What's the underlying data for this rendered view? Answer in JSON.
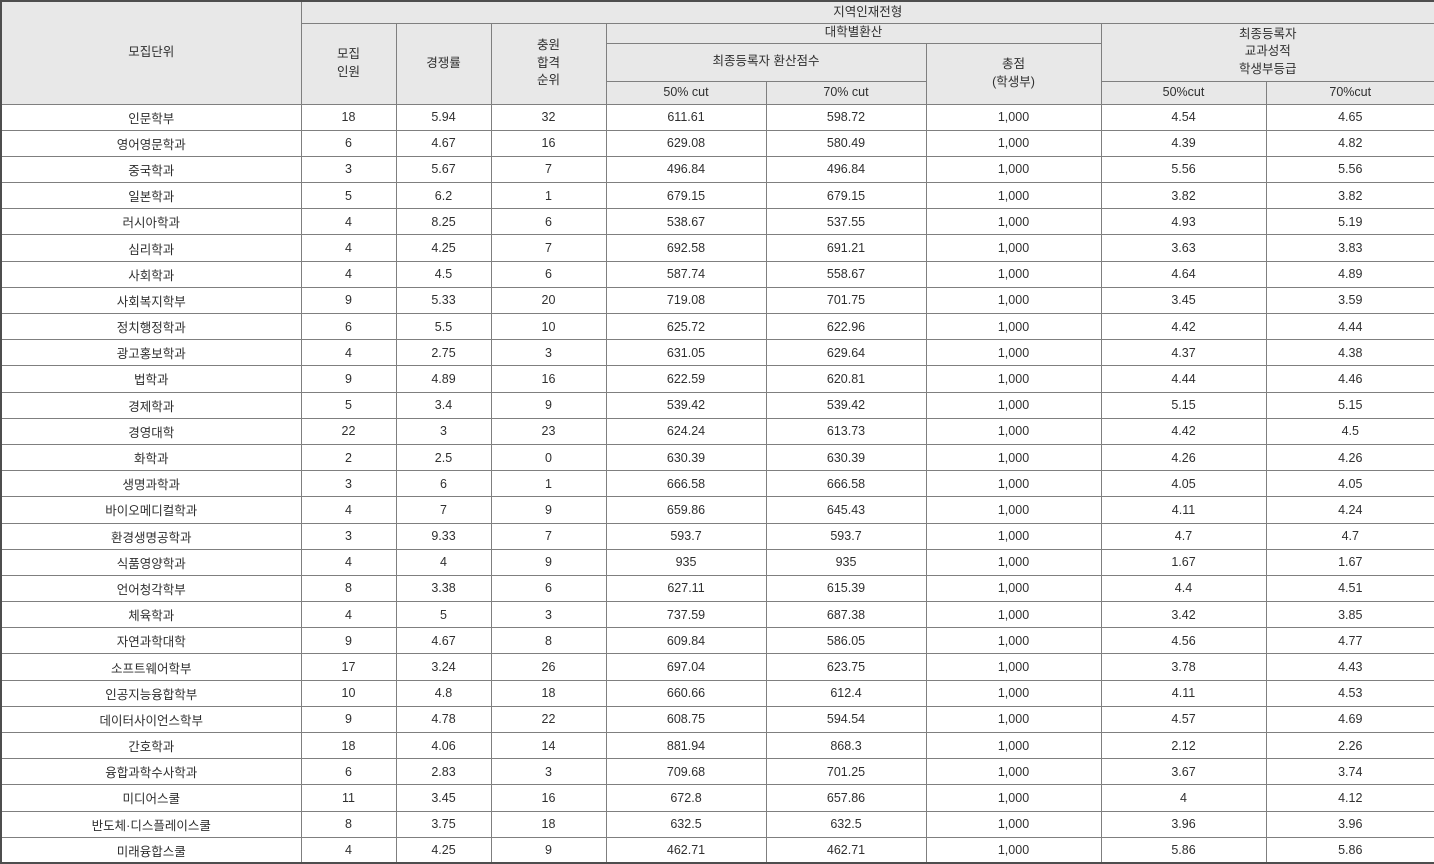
{
  "table": {
    "title_band": "지역인재전형",
    "headers": {
      "unit": "모집단위",
      "recruit_count": "모집\n인원",
      "competition_ratio": "경쟁률",
      "waitlist_rank": "충원\n합격\n순위",
      "univ_conversion_group": "대학별환산",
      "final_registrant_score_group": "최종등록자 환산점수",
      "score_cut50": "50% cut",
      "score_cut70": "70% cut",
      "total_score": "총점\n(학생부)",
      "grade_group": "최종등록자\n교과성적\n학생부등급",
      "grade_cut50": "50%cut",
      "grade_cut70": "70%cut"
    },
    "rows": [
      [
        "인문학부",
        "18",
        "5.94",
        "32",
        "611.61",
        "598.72",
        "1,000",
        "4.54",
        "4.65"
      ],
      [
        "영어영문학과",
        "6",
        "4.67",
        "16",
        "629.08",
        "580.49",
        "1,000",
        "4.39",
        "4.82"
      ],
      [
        "중국학과",
        "3",
        "5.67",
        "7",
        "496.84",
        "496.84",
        "1,000",
        "5.56",
        "5.56"
      ],
      [
        "일본학과",
        "5",
        "6.2",
        "1",
        "679.15",
        "679.15",
        "1,000",
        "3.82",
        "3.82"
      ],
      [
        "러시아학과",
        "4",
        "8.25",
        "6",
        "538.67",
        "537.55",
        "1,000",
        "4.93",
        "5.19"
      ],
      [
        "심리학과",
        "4",
        "4.25",
        "7",
        "692.58",
        "691.21",
        "1,000",
        "3.63",
        "3.83"
      ],
      [
        "사회학과",
        "4",
        "4.5",
        "6",
        "587.74",
        "558.67",
        "1,000",
        "4.64",
        "4.89"
      ],
      [
        "사회복지학부",
        "9",
        "5.33",
        "20",
        "719.08",
        "701.75",
        "1,000",
        "3.45",
        "3.59"
      ],
      [
        "정치행정학과",
        "6",
        "5.5",
        "10",
        "625.72",
        "622.96",
        "1,000",
        "4.42",
        "4.44"
      ],
      [
        "광고홍보학과",
        "4",
        "2.75",
        "3",
        "631.05",
        "629.64",
        "1,000",
        "4.37",
        "4.38"
      ],
      [
        "법학과",
        "9",
        "4.89",
        "16",
        "622.59",
        "620.81",
        "1,000",
        "4.44",
        "4.46"
      ],
      [
        "경제학과",
        "5",
        "3.4",
        "9",
        "539.42",
        "539.42",
        "1,000",
        "5.15",
        "5.15"
      ],
      [
        "경영대학",
        "22",
        "3",
        "23",
        "624.24",
        "613.73",
        "1,000",
        "4.42",
        "4.5"
      ],
      [
        "화학과",
        "2",
        "2.5",
        "0",
        "630.39",
        "630.39",
        "1,000",
        "4.26",
        "4.26"
      ],
      [
        "생명과학과",
        "3",
        "6",
        "1",
        "666.58",
        "666.58",
        "1,000",
        "4.05",
        "4.05"
      ],
      [
        "바이오메디컬학과",
        "4",
        "7",
        "9",
        "659.86",
        "645.43",
        "1,000",
        "4.11",
        "4.24"
      ],
      [
        "환경생명공학과",
        "3",
        "9.33",
        "7",
        "593.7",
        "593.7",
        "1,000",
        "4.7",
        "4.7"
      ],
      [
        "식품영양학과",
        "4",
        "4",
        "9",
        "935",
        "935",
        "1,000",
        "1.67",
        "1.67"
      ],
      [
        "언어청각학부",
        "8",
        "3.38",
        "6",
        "627.11",
        "615.39",
        "1,000",
        "4.4",
        "4.51"
      ],
      [
        "체육학과",
        "4",
        "5",
        "3",
        "737.59",
        "687.38",
        "1,000",
        "3.42",
        "3.85"
      ],
      [
        "자연과학대학",
        "9",
        "4.67",
        "8",
        "609.84",
        "586.05",
        "1,000",
        "4.56",
        "4.77"
      ],
      [
        "소프트웨어학부",
        "17",
        "3.24",
        "26",
        "697.04",
        "623.75",
        "1,000",
        "3.78",
        "4.43"
      ],
      [
        "인공지능융합학부",
        "10",
        "4.8",
        "18",
        "660.66",
        "612.4",
        "1,000",
        "4.11",
        "4.53"
      ],
      [
        "데이터사이언스학부",
        "9",
        "4.78",
        "22",
        "608.75",
        "594.54",
        "1,000",
        "4.57",
        "4.69"
      ],
      [
        "간호학과",
        "18",
        "4.06",
        "14",
        "881.94",
        "868.3",
        "1,000",
        "2.12",
        "2.26"
      ],
      [
        "융합과학수사학과",
        "6",
        "2.83",
        "3",
        "709.68",
        "701.25",
        "1,000",
        "3.67",
        "3.74"
      ],
      [
        "미디어스쿨",
        "11",
        "3.45",
        "16",
        "672.8",
        "657.86",
        "1,000",
        "4",
        "4.12"
      ],
      [
        "반도체·디스플레이스쿨",
        "8",
        "3.75",
        "18",
        "632.5",
        "632.5",
        "1,000",
        "3.96",
        "3.96"
      ],
      [
        "미래융합스쿨",
        "4",
        "4.25",
        "9",
        "462.71",
        "462.71",
        "1,000",
        "5.86",
        "5.86"
      ]
    ]
  }
}
